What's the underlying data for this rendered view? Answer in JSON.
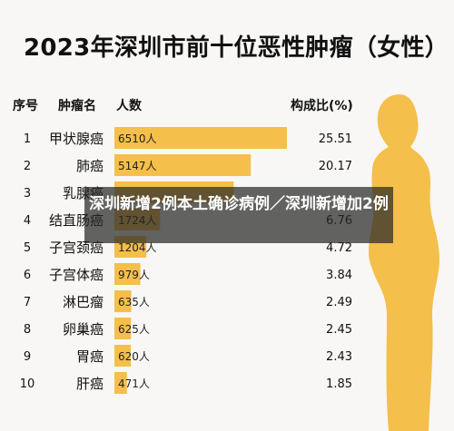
{
  "title": "2023年深圳市前十位恶性肿瘤（女性）",
  "headers": {
    "rank": "序号",
    "cancer": "肿瘤名",
    "count": "人数",
    "ratio": "构成比(%)"
  },
  "overlay_text": "深圳新增2例本土确诊病例／深圳新增加2例",
  "colors": {
    "bar": "#f4bf4a",
    "silhouette": "#f4bf4a",
    "overlay": "#333333"
  },
  "chart_data": {
    "type": "bar",
    "title": "2023年深圳市前十位恶性肿瘤（女性）",
    "orientation": "horizontal",
    "unit": "人",
    "categories": [
      "甲状腺癌",
      "肺癌",
      "乳腺癌",
      "结直肠癌",
      "子宫颈癌",
      "子宫体癌",
      "淋巴瘤",
      "卵巢癌",
      "胃癌",
      "肝癌"
    ],
    "ranks": [
      "1",
      "2",
      "3",
      "4",
      "5",
      "6",
      "7",
      "8",
      "9",
      "10"
    ],
    "values": [
      6510,
      5147,
      4500,
      1724,
      1204,
      979,
      635,
      625,
      620,
      471
    ],
    "value_labels": [
      "6510人",
      "5147人",
      "",
      "1724人",
      "1204人",
      "979人",
      "635人",
      "625人",
      "620人",
      "471人"
    ],
    "ratios": [
      "25.51",
      "20.17",
      "",
      "6.76",
      "4.72",
      "3.84",
      "2.49",
      "2.45",
      "2.43",
      "1.85"
    ],
    "xlim": [
      0,
      6510
    ],
    "grid": false
  }
}
